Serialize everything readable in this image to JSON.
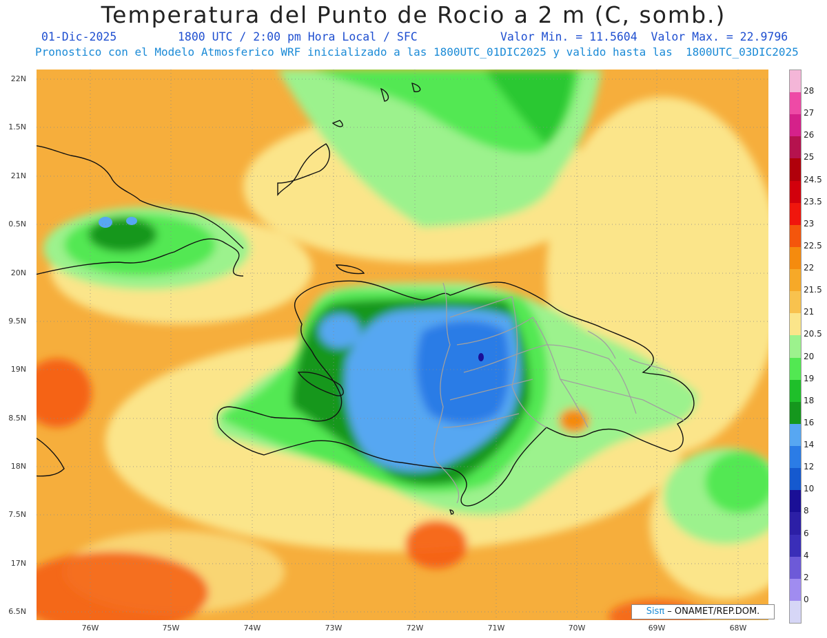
{
  "title": "Temperatura del Punto de Rocio a 2 m (C, somb.)",
  "line2": {
    "date": "01-Dic-2025",
    "time": "1800 UTC / 2:00 pm Hora Local / SFC",
    "minmax": "Valor Min. = 11.5604  Valor Max. = 22.9796"
  },
  "line3": "Pronostico con el Modelo Atmosferico WRF inicializado a las 1800UTC_01DIC2025 y valido hasta las  1800UTC_03DIC2025",
  "y_axis_labels": [
    "22N",
    "1.5N",
    "21N",
    "0.5N",
    "20N",
    "9.5N",
    "19N",
    "8.5N",
    "18N",
    "7.5N",
    "17N",
    "6.5N"
  ],
  "x_axis_labels": [
    "76W",
    "75W",
    "74W",
    "73W",
    "72W",
    "71W",
    "70W",
    "69W",
    "68W"
  ],
  "colorbar": {
    "labels": [
      "28",
      "27",
      "26",
      "25",
      "24.5",
      "23.5",
      "23",
      "22.5",
      "22",
      "21.5",
      "21",
      "20.5",
      "20",
      "19",
      "18",
      "16",
      "14",
      "12",
      "10",
      "8",
      "6",
      "4",
      "2",
      "0"
    ],
    "colors": [
      "#f4b6d8",
      "#ee4aa6",
      "#d5218a",
      "#b5124e",
      "#b0000b",
      "#d2000c",
      "#f0160d",
      "#f4560c",
      "#f58b0e",
      "#f6a928",
      "#f8c24e",
      "#fbe58a",
      "#9cf28d",
      "#52e852",
      "#1fbf2a",
      "#15971d",
      "#57a7f2",
      "#2b7ce6",
      "#1559cf",
      "#1a0f96",
      "#2c1fa6",
      "#3a2eb8",
      "#6d5ad8",
      "#a08cf0",
      "#d6d6f6"
    ]
  },
  "credit": {
    "sis": "Sisπ",
    "rest": " – ONAMET/REP.DOM."
  }
}
